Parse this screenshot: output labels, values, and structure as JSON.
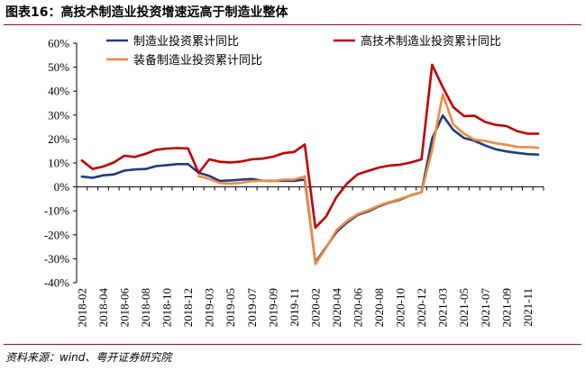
{
  "figure": {
    "title": "图表16：高技术制造业投资增速远高于制造业整体",
    "source": "资料来源：wind、粤开证券研究院"
  },
  "chart_data": {
    "type": "line",
    "title": "",
    "xlabel": "",
    "ylabel": "",
    "ylim": [
      -40,
      60
    ],
    "y_ticks": [
      "60%",
      "50%",
      "40%",
      "30%",
      "20%",
      "10%",
      "0%",
      "-10%",
      "-20%",
      "-30%",
      "-40%"
    ],
    "x_tick_labels": [
      "2018-02",
      "2018-04",
      "2018-06",
      "2018-08",
      "2018-10",
      "2018-12",
      "2019-03",
      "2019-05",
      "2019-07",
      "2019-09",
      "2019-11",
      "2020-02",
      "2020-04",
      "2020-06",
      "2020-08",
      "2020-10",
      "2020-12",
      "2021-03",
      "2021-05",
      "2021-07",
      "2021-09",
      "2021-11"
    ],
    "x": [
      "2018-02",
      "2018-03",
      "2018-04",
      "2018-05",
      "2018-06",
      "2018-07",
      "2018-08",
      "2018-09",
      "2018-10",
      "2018-11",
      "2018-12",
      "2019-02",
      "2019-03",
      "2019-04",
      "2019-05",
      "2019-06",
      "2019-07",
      "2019-08",
      "2019-09",
      "2019-10",
      "2019-11",
      "2019-12",
      "2020-02",
      "2020-03",
      "2020-04",
      "2020-05",
      "2020-06",
      "2020-07",
      "2020-08",
      "2020-09",
      "2020-10",
      "2020-11",
      "2020-12",
      "2021-02",
      "2021-03",
      "2021-04",
      "2021-05",
      "2021-06",
      "2021-07",
      "2021-08",
      "2021-09",
      "2021-10",
      "2021-11",
      "2021-12"
    ],
    "legend_position": "top",
    "series": [
      {
        "name": "制造业投资累计同比",
        "color": "#1f3d7a",
        "values": [
          4.3,
          3.8,
          4.8,
          5.2,
          6.8,
          7.3,
          7.5,
          8.7,
          9.1,
          9.5,
          9.5,
          5.9,
          4.6,
          2.5,
          2.7,
          3.0,
          3.3,
          2.6,
          2.5,
          2.6,
          2.5,
          3.1,
          -31.5,
          -25.2,
          -18.8,
          -14.8,
          -11.7,
          -10.2,
          -8.1,
          -6.5,
          -5.3,
          -3.5,
          -2.2,
          20.2,
          29.8,
          23.8,
          20.4,
          19.2,
          17.3,
          15.7,
          14.8,
          14.2,
          13.7,
          13.5
        ]
      },
      {
        "name": "高技术制造业投资累计同比",
        "color": "#c00000",
        "values": [
          11.0,
          7.5,
          8.5,
          10.2,
          13.0,
          12.5,
          13.8,
          15.5,
          16.0,
          16.2,
          16.1,
          5.8,
          11.5,
          10.5,
          10.2,
          10.6,
          11.5,
          11.8,
          12.6,
          14.1,
          14.6,
          17.7,
          -17.0,
          -12.4,
          -4.2,
          1.5,
          5.3,
          6.7,
          8.1,
          8.9,
          9.3,
          10.2,
          11.5,
          51.0,
          41.6,
          33.3,
          29.6,
          29.7,
          27.1,
          25.9,
          25.4,
          23.3,
          22.2,
          22.2
        ]
      },
      {
        "name": "装备制造业投资累计同比",
        "color": "#f08a40",
        "values": [
          null,
          null,
          null,
          null,
          null,
          null,
          null,
          null,
          null,
          null,
          null,
          4.5,
          3.3,
          1.6,
          1.3,
          1.7,
          2.4,
          2.6,
          2.4,
          3.0,
          3.1,
          4.4,
          -32.2,
          -25.5,
          -18.0,
          -14.2,
          -11.3,
          -9.7,
          -7.8,
          -6.3,
          -5.0,
          -3.6,
          -2.2,
          15.5,
          38.7,
          26.1,
          22.2,
          19.7,
          19.2,
          18.2,
          17.6,
          16.7,
          16.6,
          16.3
        ]
      }
    ]
  }
}
